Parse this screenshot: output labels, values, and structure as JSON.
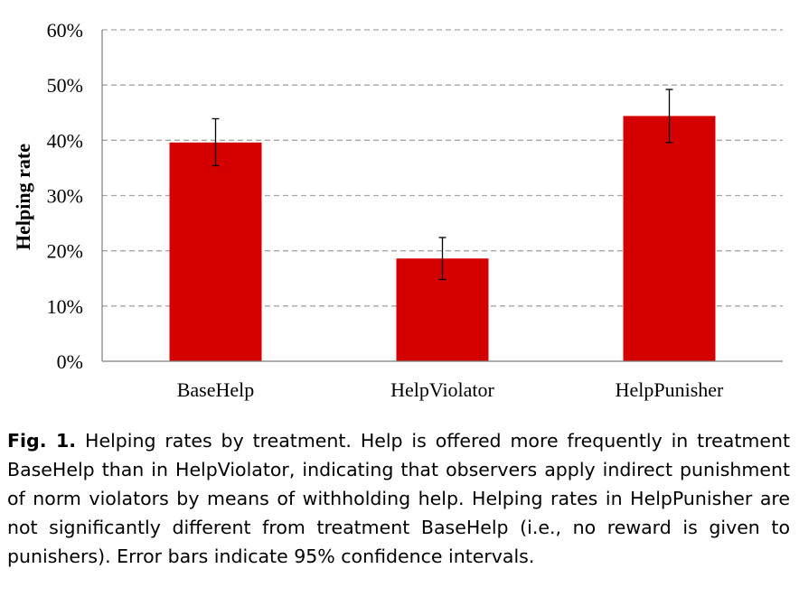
{
  "chart_data": {
    "type": "bar",
    "categories": [
      "BaseHelp",
      "HelpViolator",
      "HelpPunisher"
    ],
    "values": [
      39.6,
      18.6,
      44.4
    ],
    "error_bars": [
      {
        "low": 35.4,
        "high": 43.9
      },
      {
        "low": 14.8,
        "high": 22.4
      },
      {
        "low": 39.6,
        "high": 49.2
      }
    ],
    "ylabel": "Helping rate",
    "xlabel": "",
    "ylim": [
      0,
      60
    ],
    "yticks": [
      0,
      10,
      20,
      30,
      40,
      50,
      60
    ],
    "ytick_labels": [
      "0%",
      "10%",
      "20%",
      "30%",
      "40%",
      "50%",
      "60%"
    ],
    "grid": "horizontal dashed",
    "bar_color": "#d40000",
    "grid_color": "#a6a6a6"
  },
  "caption": {
    "label": "Fig. 1.",
    "text": "Helping rates by treatment. Help is offered more frequently in treatment BaseHelp than in HelpViolator, indicating that observers apply indirect punishment of norm violators by means of withholding help. Helping rates in HelpPunisher are not significantly different from treatment BaseHelp (i.e., no reward is given to punishers). Error bars indicate 95% confidence intervals."
  }
}
